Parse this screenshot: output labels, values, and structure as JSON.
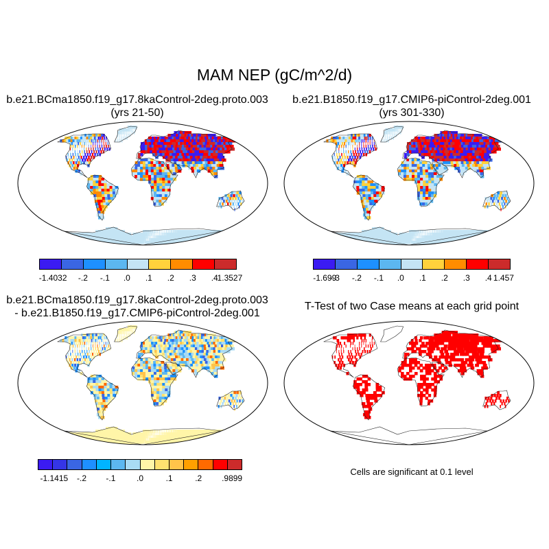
{
  "title": "MAM NEP (gC/m^2/d)",
  "panels": [
    {
      "title_line1": "b.e21.BCma1850.f19_g17.8kaControl-2deg.proto.003",
      "title_line2": "(yrs 21-50)",
      "colorbar": {
        "colors": [
          "#3b1bf2",
          "#3a66e3",
          "#1e90ff",
          "#5cb7f0",
          "#c4e4f4",
          "#ffd23c",
          "#ff8c00",
          "#ff0000",
          "#cc2b2b"
        ],
        "labels": [
          "-1.4032",
          "-.2",
          "-.1",
          ".0",
          ".1",
          ".2",
          ".3",
          ".4",
          "1.3527"
        ]
      }
    },
    {
      "title_line1": "b.e21.B1850.f19_g17.CMIP6-piControl-2deg.001",
      "title_line2": "(yrs 301-330)",
      "colorbar": {
        "colors": [
          "#3b1bf2",
          "#3a66e3",
          "#1e90ff",
          "#5cb7f0",
          "#c4e4f4",
          "#ffd23c",
          "#ff8c00",
          "#ff0000",
          "#cc2b2b"
        ],
        "labels": [
          "-1.699",
          "-.3",
          "-.2",
          "-.1",
          ".0",
          ".1",
          ".2",
          ".3",
          ".4",
          "1.457"
        ]
      }
    },
    {
      "title_line1": "b.e21.BCma1850.f19_g17.8kaControl-2deg.proto.003",
      "title_line2": "- b.e21.B1850.f19_g17.CMIP6-piControl-2deg.001",
      "colorbar": {
        "colors": [
          "#3b1bf2",
          "#3535e6",
          "#3a66e3",
          "#1e90ff",
          "#00b4ff",
          "#5cb7f0",
          "#a9dbf4",
          "#fff5a8",
          "#ffe170",
          "#ffc44a",
          "#ffa000",
          "#ff6a00",
          "#ff0000",
          "#cc2b2b"
        ],
        "labels": [
          "-1.1415",
          "-.2",
          "-.1",
          ".0",
          ".1",
          ".2",
          ".9899"
        ]
      }
    },
    {
      "title_line1": "T-Test of two Case means at each grid point",
      "note": "Cells are significant at 0.1 level",
      "mark_color": "#ff0000"
    }
  ]
}
